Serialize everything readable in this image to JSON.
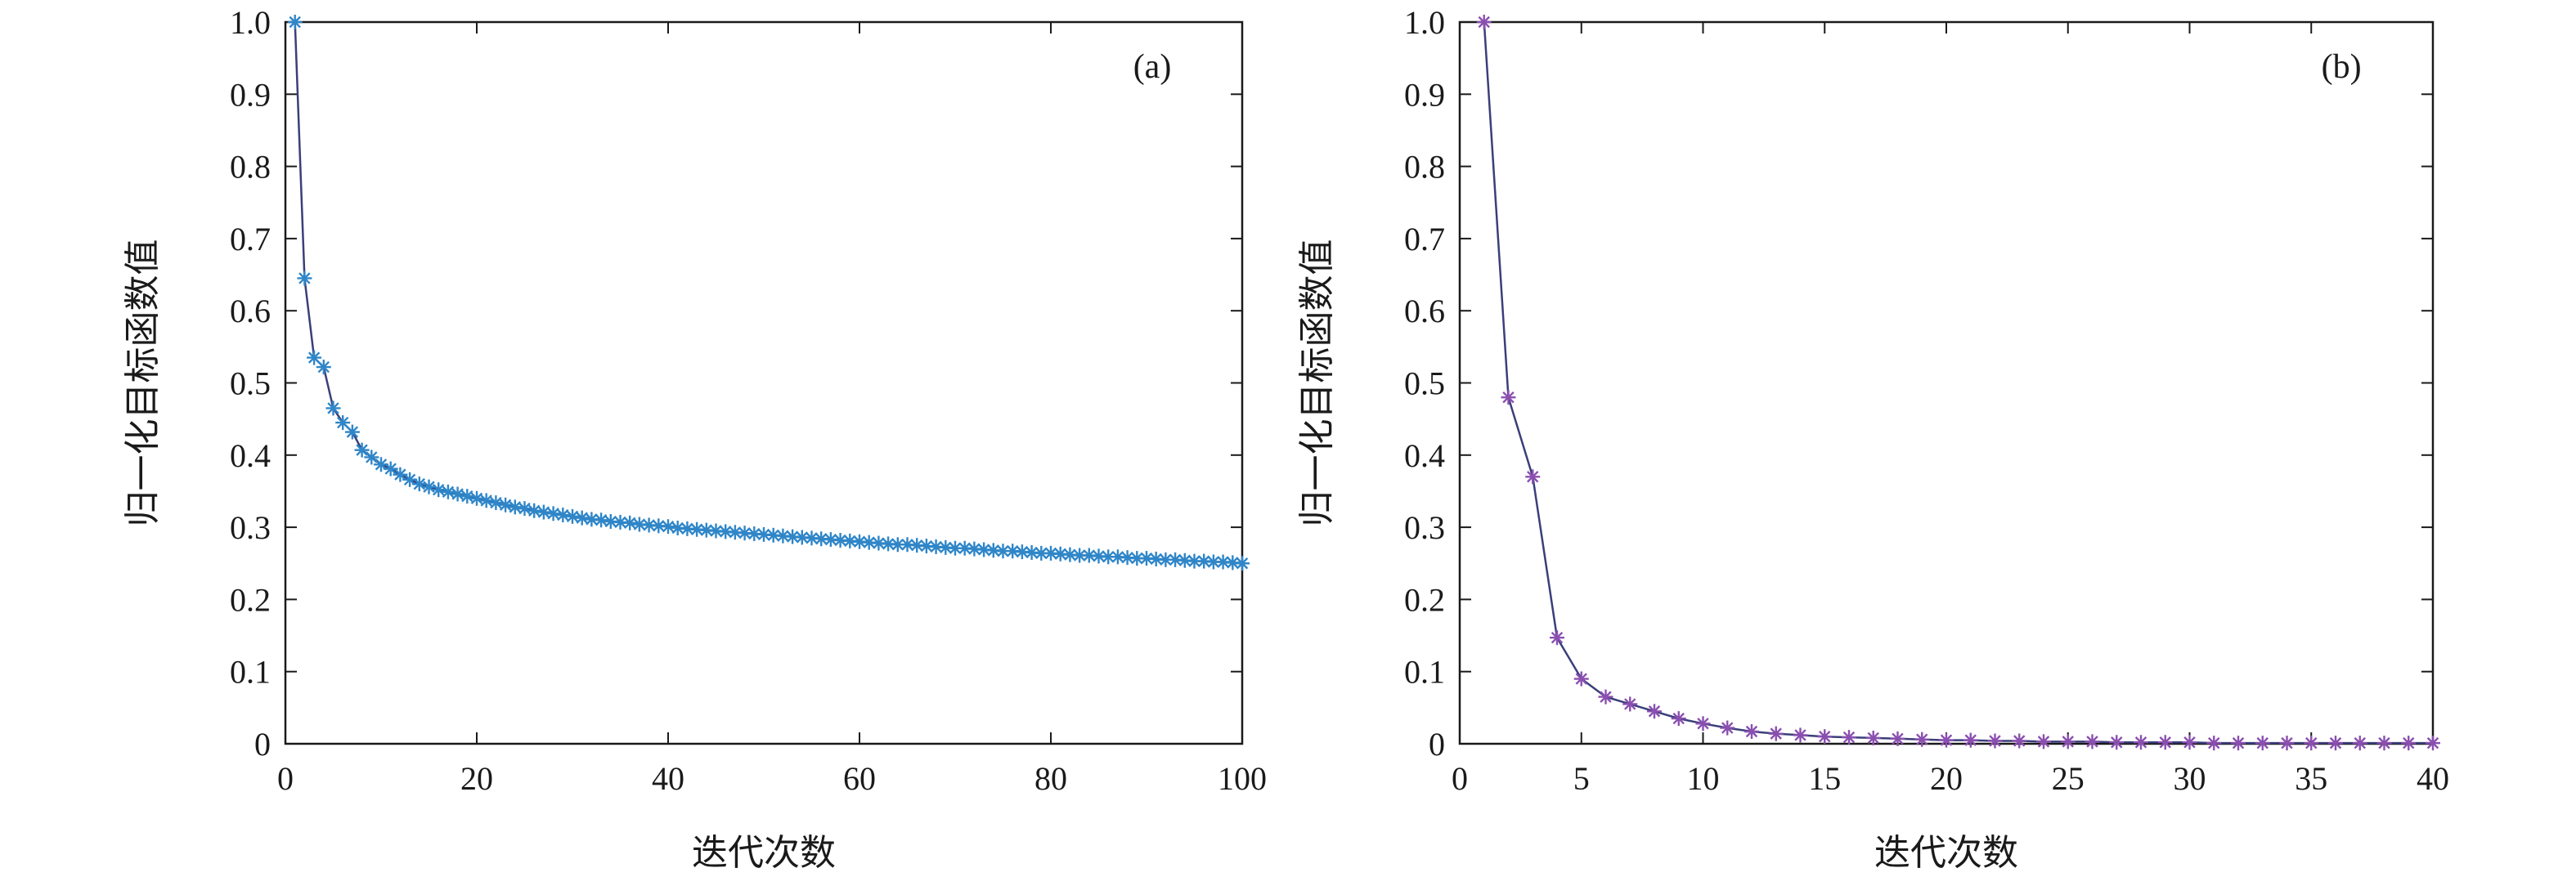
{
  "chart_data": [
    {
      "type": "line",
      "panel_label": "(a)",
      "xlabel": "迭代次数",
      "ylabel": "归一化目标函数值",
      "xlim": [
        0,
        100
      ],
      "ylim": [
        0,
        1.0
      ],
      "xticks": [
        0,
        20,
        40,
        60,
        80,
        100
      ],
      "xtick_labels": [
        "0",
        "20",
        "40",
        "60",
        "80",
        "100"
      ],
      "yticks": [
        0,
        0.1,
        0.2,
        0.3,
        0.4,
        0.5,
        0.6,
        0.7,
        0.8,
        0.9,
        1.0
      ],
      "ytick_labels": [
        "0",
        "0.1",
        "0.2",
        "0.3",
        "0.4",
        "0.5",
        "0.6",
        "0.7",
        "0.8",
        "0.9",
        "1.0"
      ],
      "grid": false,
      "marker": "asterisk",
      "series": [
        {
          "x": [
            1,
            2,
            3,
            4,
            5,
            6,
            7,
            8,
            9,
            10,
            11,
            12,
            13,
            14,
            15,
            16,
            17,
            18,
            19,
            20,
            21,
            22,
            23,
            24,
            25,
            26,
            27,
            28,
            29,
            30,
            31,
            32,
            33,
            34,
            35,
            36,
            37,
            38,
            39,
            40,
            41,
            42,
            43,
            44,
            45,
            46,
            47,
            48,
            49,
            50,
            51,
            52,
            53,
            54,
            55,
            56,
            57,
            58,
            59,
            60,
            61,
            62,
            63,
            64,
            65,
            66,
            67,
            68,
            69,
            70,
            71,
            72,
            73,
            74,
            75,
            76,
            77,
            78,
            79,
            80,
            81,
            82,
            83,
            84,
            85,
            86,
            87,
            88,
            89,
            90,
            91,
            92,
            93,
            94,
            95,
            96,
            97,
            98,
            99,
            100
          ],
          "values": [
            1.0,
            0.645,
            0.535,
            0.522,
            0.465,
            0.445,
            0.432,
            0.407,
            0.397,
            0.387,
            0.381,
            0.373,
            0.366,
            0.36,
            0.356,
            0.352,
            0.349,
            0.346,
            0.343,
            0.34,
            0.337,
            0.334,
            0.331,
            0.328,
            0.326,
            0.323,
            0.321,
            0.319,
            0.317,
            0.315,
            0.313,
            0.311,
            0.31,
            0.308,
            0.307,
            0.306,
            0.304,
            0.303,
            0.302,
            0.301,
            0.299,
            0.298,
            0.297,
            0.296,
            0.295,
            0.294,
            0.293,
            0.292,
            0.291,
            0.29,
            0.289,
            0.288,
            0.287,
            0.286,
            0.285,
            0.284,
            0.283,
            0.282,
            0.281,
            0.28,
            0.279,
            0.278,
            0.277,
            0.276,
            0.276,
            0.275,
            0.274,
            0.273,
            0.272,
            0.271,
            0.271,
            0.27,
            0.269,
            0.268,
            0.267,
            0.267,
            0.266,
            0.265,
            0.264,
            0.264,
            0.263,
            0.262,
            0.261,
            0.261,
            0.26,
            0.259,
            0.259,
            0.258,
            0.257,
            0.257,
            0.256,
            0.255,
            0.255,
            0.254,
            0.253,
            0.253,
            0.252,
            0.252,
            0.251,
            0.25
          ]
        }
      ]
    },
    {
      "type": "line",
      "panel_label": "(b)",
      "xlabel": "迭代次数",
      "ylabel": "归一化目标函数值",
      "xlim": [
        0,
        40
      ],
      "ylim": [
        0,
        1.0
      ],
      "xticks": [
        0,
        5,
        10,
        15,
        20,
        25,
        30,
        35,
        40
      ],
      "xtick_labels": [
        "0",
        "5",
        "10",
        "15",
        "20",
        "25",
        "30",
        "35",
        "40"
      ],
      "yticks": [
        0,
        0.1,
        0.2,
        0.3,
        0.4,
        0.5,
        0.6,
        0.7,
        0.8,
        0.9,
        1.0
      ],
      "ytick_labels": [
        "0",
        "0.1",
        "0.2",
        "0.3",
        "0.4",
        "0.5",
        "0.6",
        "0.7",
        "0.8",
        "0.9",
        "1.0"
      ],
      "grid": false,
      "marker": "asterisk",
      "series": [
        {
          "x": [
            1,
            2,
            3,
            4,
            5,
            6,
            7,
            8,
            9,
            10,
            11,
            12,
            13,
            14,
            15,
            16,
            17,
            18,
            19,
            20,
            21,
            22,
            23,
            24,
            25,
            26,
            27,
            28,
            29,
            30,
            31,
            32,
            33,
            34,
            35,
            36,
            37,
            38,
            39,
            40
          ],
          "values": [
            1.0,
            0.48,
            0.37,
            0.147,
            0.09,
            0.065,
            0.055,
            0.045,
            0.035,
            0.028,
            0.022,
            0.017,
            0.014,
            0.012,
            0.01,
            0.009,
            0.008,
            0.007,
            0.006,
            0.005,
            0.005,
            0.004,
            0.004,
            0.003,
            0.003,
            0.003,
            0.002,
            0.002,
            0.002,
            0.002,
            0.001,
            0.001,
            0.001,
            0.001,
            0.001,
            0.001,
            0.001,
            0.001,
            0.001,
            0.001
          ]
        }
      ]
    }
  ],
  "colors": {
    "line": "#3a3f7a",
    "marker_a": "#2f86c8",
    "marker_b": "#8a4fb0",
    "frame": "#1a1a1a",
    "background": "#ffffff"
  }
}
